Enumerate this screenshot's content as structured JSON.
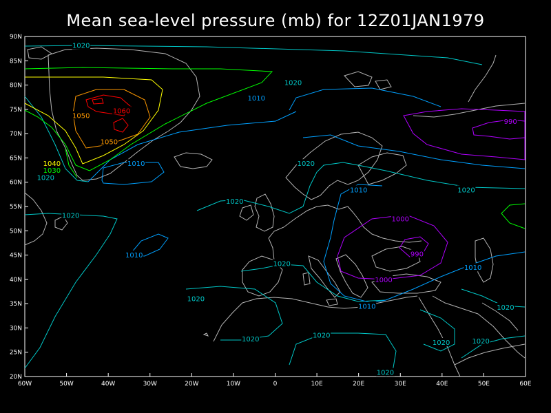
{
  "title": "Mean sea-level pressure (mb) for 12Z01JAN1979",
  "axes": {
    "lon_labels": [
      "60W",
      "50W",
      "40W",
      "30W",
      "20W",
      "10W",
      "0",
      "10E",
      "20E",
      "30E",
      "40E",
      "50E",
      "60E"
    ],
    "lat_labels": [
      "90N",
      "85N",
      "80N",
      "75N",
      "70N",
      "65N",
      "60N",
      "55N",
      "50N",
      "45N",
      "40N",
      "35N",
      "30N",
      "25N",
      "20N"
    ],
    "lon_range": [
      -60,
      60
    ],
    "lat_range": [
      20,
      90
    ]
  },
  "contour_labels": [
    {
      "text": "1020",
      "color": "#00c8c8",
      "lon": -46.5,
      "lat": 88.2
    },
    {
      "text": "1020",
      "color": "#00c8c8",
      "lon": 4.3,
      "lat": 80.6
    },
    {
      "text": "1010",
      "color": "#00a0ff",
      "lon": -4.5,
      "lat": 77.4
    },
    {
      "text": "1060",
      "color": "#ff0000",
      "lon": -36.8,
      "lat": 74.8
    },
    {
      "text": "1050",
      "color": "#ff9900",
      "lon": -46.5,
      "lat": 73.8
    },
    {
      "text": "1050",
      "color": "#ff9900",
      "lon": -39.8,
      "lat": 68.4
    },
    {
      "text": "1040",
      "color": "#ffff00",
      "lon": -53.5,
      "lat": 63.9
    },
    {
      "text": "1030",
      "color": "#00ff00",
      "lon": -53.5,
      "lat": 62.5
    },
    {
      "text": "1020",
      "color": "#00c8c8",
      "lon": -55.0,
      "lat": 61.0
    },
    {
      "text": "1010",
      "color": "#00a0ff",
      "lon": -33.3,
      "lat": 63.9
    },
    {
      "text": "1020",
      "color": "#00c8c8",
      "lon": 7.4,
      "lat": 63.9
    },
    {
      "text": "1010",
      "color": "#00a0ff",
      "lon": 20.0,
      "lat": 58.5
    },
    {
      "text": "1020",
      "color": "#00c8c8",
      "lon": 45.8,
      "lat": 58.5
    },
    {
      "text": "990",
      "color": "#b000ff",
      "lon": 56.4,
      "lat": 72.6
    },
    {
      "text": "1020",
      "color": "#00c8c8",
      "lon": -49.0,
      "lat": 53.2
    },
    {
      "text": "1020",
      "color": "#00c8c8",
      "lon": -9.7,
      "lat": 56.1
    },
    {
      "text": "1000",
      "color": "#b000ff",
      "lon": 30.0,
      "lat": 52.5
    },
    {
      "text": "1010",
      "color": "#00a0ff",
      "lon": -33.8,
      "lat": 45.1
    },
    {
      "text": "990",
      "color": "#b000ff",
      "lon": 34.0,
      "lat": 45.3
    },
    {
      "text": "1020",
      "color": "#00c8c8",
      "lon": 1.6,
      "lat": 43.3
    },
    {
      "text": "1010",
      "color": "#00a0ff",
      "lon": 47.4,
      "lat": 42.5
    },
    {
      "text": "1000",
      "color": "#b000ff",
      "lon": 26.0,
      "lat": 40.0
    },
    {
      "text": "1020",
      "color": "#00c8c8",
      "lon": -19.0,
      "lat": 36.1
    },
    {
      "text": "1010",
      "color": "#00a0ff",
      "lon": 22.0,
      "lat": 34.5
    },
    {
      "text": "1020",
      "color": "#00c8c8",
      "lon": 55.2,
      "lat": 34.3
    },
    {
      "text": "1020",
      "color": "#00c8c8",
      "lon": -5.9,
      "lat": 27.8
    },
    {
      "text": "1020",
      "color": "#00c8c8",
      "lon": 11.1,
      "lat": 28.6
    },
    {
      "text": "1020",
      "color": "#00c8c8",
      "lon": 39.8,
      "lat": 27.1
    },
    {
      "text": "1020",
      "color": "#00c8c8",
      "lon": 49.3,
      "lat": 27.4
    },
    {
      "text": "1020",
      "color": "#00c8c8",
      "lon": 26.4,
      "lat": 20.9
    }
  ]
}
